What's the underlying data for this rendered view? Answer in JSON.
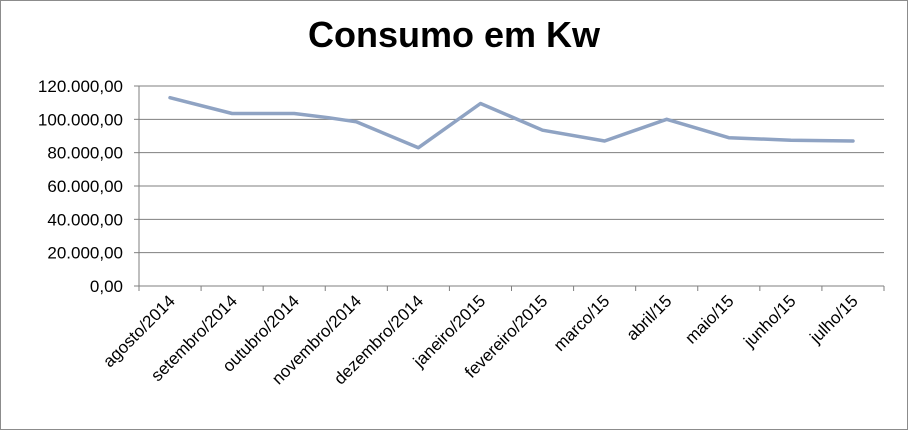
{
  "chart_data": {
    "type": "line",
    "title": "Consumo em Kw",
    "categories": [
      "agosto/2014",
      "setembro/2014",
      "outubro/2014",
      "novembro/2014",
      "dezembro/2014",
      "janeiro/2015",
      "fevereiro/2015",
      "marco/15",
      "abril/15",
      "maio/15",
      "junho/15",
      "julho/15"
    ],
    "x": [
      0,
      1,
      2,
      2.55,
      3,
      4,
      5,
      6,
      7,
      8,
      9,
      10,
      11
    ],
    "values": [
      113000,
      103500,
      103500,
      101000,
      98500,
      83000,
      109500,
      93500,
      87000,
      100000,
      89000,
      87500,
      87000
    ],
    "ylim": [
      0,
      120000
    ],
    "yticks": [
      0,
      20000,
      40000,
      60000,
      80000,
      100000,
      120000
    ],
    "ytick_labels": [
      "0,00",
      "20.000,00",
      "40.000,00",
      "60.000,00",
      "80.000,00",
      "100.000,00",
      "120.000,00"
    ],
    "grid": true,
    "legend": "none",
    "line_color": "#8fa3c3",
    "grid_color": "#7f7f7f",
    "axis_color": "#7f7f7f"
  }
}
